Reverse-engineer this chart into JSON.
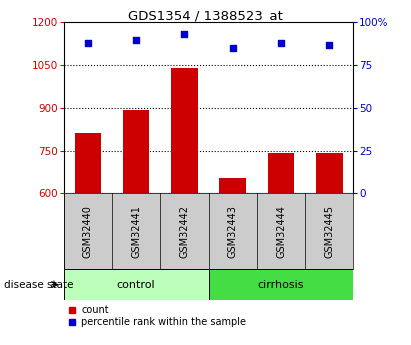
{
  "title": "GDS1354 / 1388523_at",
  "samples": [
    "GSM32440",
    "GSM32441",
    "GSM32442",
    "GSM32443",
    "GSM32444",
    "GSM32445"
  ],
  "counts": [
    810,
    893,
    1040,
    655,
    740,
    740
  ],
  "percentile_ranks": [
    88,
    90,
    93,
    85,
    88,
    87
  ],
  "groups": [
    "control",
    "control",
    "control",
    "cirrhosis",
    "cirrhosis",
    "cirrhosis"
  ],
  "ylim_left": [
    600,
    1200
  ],
  "ylim_right": [
    0,
    100
  ],
  "yticks_left": [
    600,
    750,
    900,
    1050,
    1200
  ],
  "yticks_right": [
    0,
    25,
    50,
    75,
    100
  ],
  "bar_color": "#cc0000",
  "dot_color": "#0000cc",
  "control_color": "#bbffbb",
  "cirrhosis_color": "#44dd44",
  "left_tick_color": "#cc0000",
  "right_tick_color": "#0000cc",
  "plot_bg_color": "white",
  "sample_bg_color": "#cccccc",
  "n_control": 3,
  "n_cirrhosis": 3
}
